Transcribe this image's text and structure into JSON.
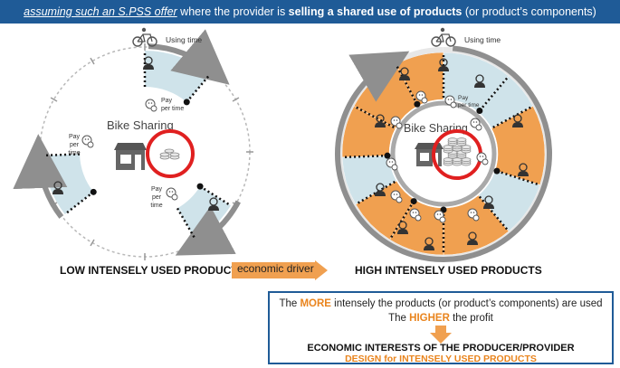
{
  "banner": {
    "part1": "assuming such an S.PSS offer",
    "part2": " where the provider is ",
    "part3": "selling a shared use of products",
    "part4": " (or product’s components)"
  },
  "left_diagram": {
    "center_label": "Bike Sharing",
    "using_time": "Using time",
    "pay_per_time": "Pay per time",
    "pay_per_time_lines": [
      "Pay",
      "per",
      "time"
    ],
    "caption": "LOW INTENSELY USED PRODUCTS"
  },
  "right_diagram": {
    "center_label": "Bike Sharing",
    "using_time": "Using time",
    "pay_per_time": "Pay per time",
    "caption": "HIGH INTENSELY USED PRODUCTS"
  },
  "transition": {
    "label": "economic driver"
  },
  "outcome": {
    "line1_pre": "The ",
    "line1_em": "MORE",
    "line1_post": " intensely the products (or product’s components) are used",
    "line2_pre": "The ",
    "line2_em": "HIGHER",
    "line2_post": " the profit",
    "line3": "ECONOMIC INTERESTS OF THE PRODUCER/PROVIDER",
    "line4": "DESIGN for INTENSELY USED PRODUCTS"
  },
  "colors": {
    "banner": "#1f5b97",
    "orange": "#f0a050",
    "light_blue": "#cfe3ea",
    "ring_gray": "#9a9a9a",
    "highlight_red": "#e02020"
  }
}
